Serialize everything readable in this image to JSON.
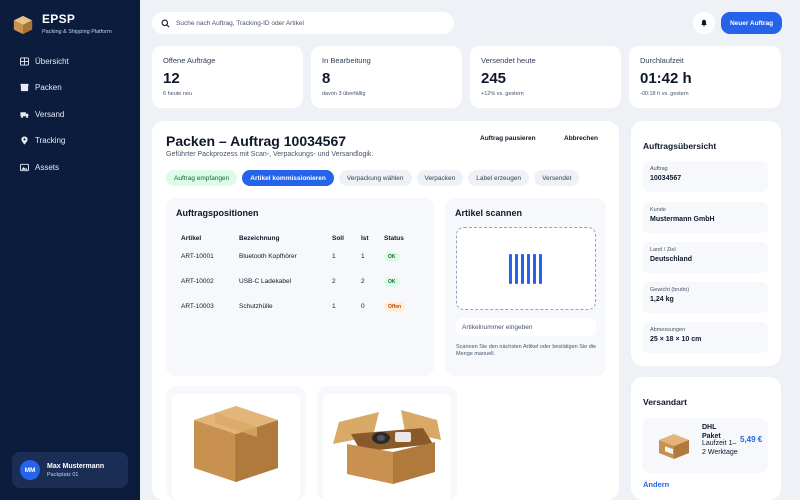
{
  "brand": {
    "name": "EPSP",
    "tagline": "Packing & Shipping Platform"
  },
  "nav": [
    {
      "label": "Übersicht",
      "icon": "grid-icon"
    },
    {
      "label": "Packen",
      "icon": "package-icon"
    },
    {
      "label": "Versand",
      "icon": "truck-icon"
    },
    {
      "label": "Tracking",
      "icon": "location-pin-icon"
    },
    {
      "label": "Assets",
      "icon": "image-icon"
    }
  ],
  "user": {
    "initials": "MM",
    "name": "Max Mustermann",
    "place": "Packplatz 01"
  },
  "header": {
    "search_placeholder": "Suche nach Auftrag, Tracking-ID oder Artikel",
    "new_order_label": "Neuer Auftrag"
  },
  "kpis": [
    {
      "label": "Offene Aufträge",
      "value": "12",
      "sub": "6 heute neu"
    },
    {
      "label": "In Bearbeitung",
      "value": "8",
      "sub": "davon 3 überfällig"
    },
    {
      "label": "Versendet heute",
      "value": "245",
      "sub": "+12% vs. gestern"
    },
    {
      "label": "Durchlaufzeit",
      "value": "01:42 h",
      "sub": "-00:18 h vs. gestern"
    }
  ],
  "main": {
    "title": "Packen – Auftrag 10034567",
    "subtitle": "Geführter Packprozess mit Scan-, Verpackungs- und Versandlogik.",
    "pause_label": "Auftrag pausieren",
    "cancel_label": "Abbrechen",
    "steps": [
      {
        "label": "Auftrag empfangen",
        "state": "done"
      },
      {
        "label": "Artikel kommissionieren",
        "state": "active"
      },
      {
        "label": "Verpackung wählen",
        "state": "pending"
      },
      {
        "label": "Verpacken",
        "state": "pending"
      },
      {
        "label": "Label erzeugen",
        "state": "pending"
      },
      {
        "label": "Versendet",
        "state": "pending"
      }
    ]
  },
  "positions": {
    "title": "Auftragspositionen",
    "columns": [
      "Artikel",
      "Bezeichnung",
      "Soll",
      "Ist",
      "Status"
    ],
    "rows": [
      {
        "artikel": "ART-10001",
        "bezeichnung": "Bluetooth Kopfhörer",
        "soll": "1",
        "ist": "1",
        "status": "OK"
      },
      {
        "artikel": "ART-10002",
        "bezeichnung": "USB-C Ladekabel",
        "soll": "2",
        "ist": "2",
        "status": "OK"
      },
      {
        "artikel": "ART-10003",
        "bezeichnung": "Schutzhülle",
        "soll": "1",
        "ist": "0",
        "status": "Offen"
      }
    ]
  },
  "scan": {
    "title": "Artikel scannen",
    "input_placeholder": "Artikelnummer eingeben",
    "hint": "Scannen Sie den nächsten Artikel oder bestätigen Sie die Menge manuell."
  },
  "summary": {
    "title": "Auftragsübersicht",
    "items": [
      {
        "label": "Auftrag",
        "value": "10034567"
      },
      {
        "label": "Kunde",
        "value": "Mustermann GmbH"
      },
      {
        "label": "Land / Ziel",
        "value": "Deutschland"
      },
      {
        "label": "Gewicht (brutto)",
        "value": "1,24 kg"
      },
      {
        "label": "Abmessungen",
        "value": "25 × 18 × 10 cm"
      }
    ]
  },
  "shipping": {
    "title": "Versandart",
    "carrier": "DHL Paket",
    "detail": "Laufzeit 1–2 Werktage",
    "price": "5,49 €",
    "change_label": "Ändern"
  },
  "colors": {
    "sidebar": "#0c1c3d",
    "accent": "#2563eb",
    "ok": "#166534",
    "open": "#c2410c"
  }
}
